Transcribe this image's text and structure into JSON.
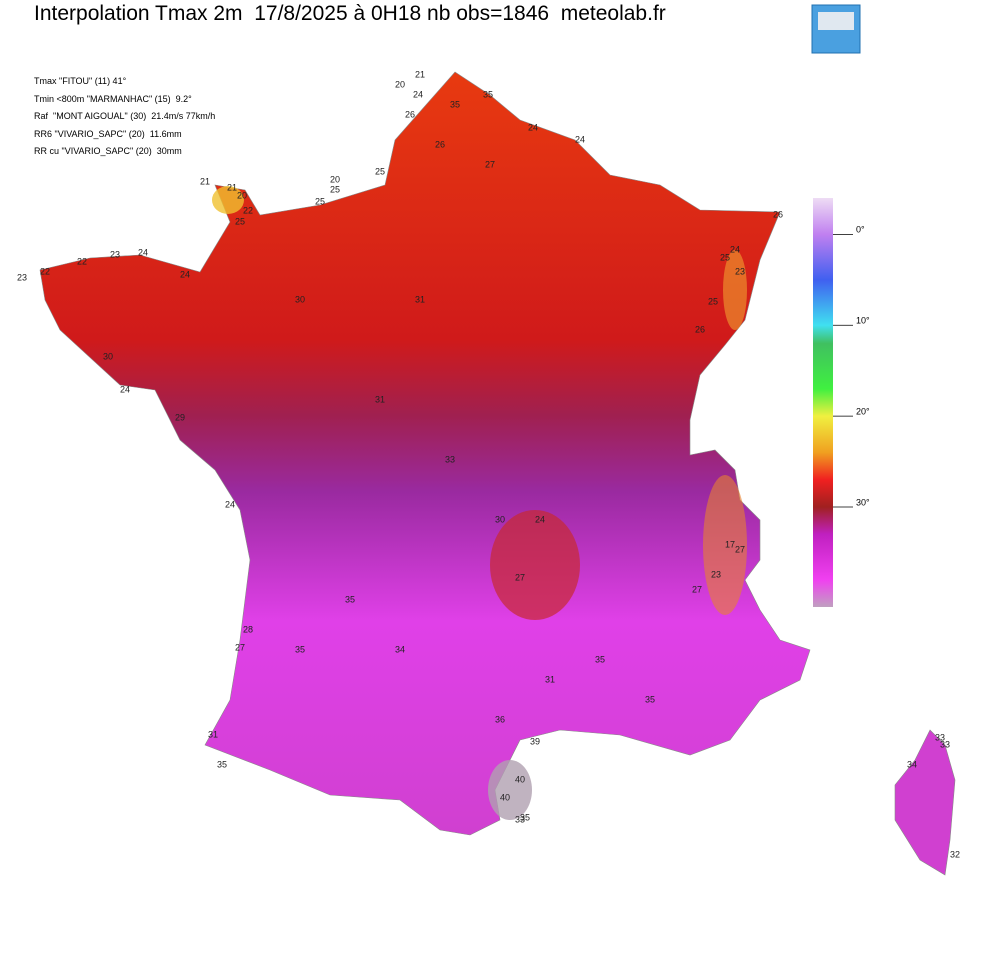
{
  "title": "Interpolation Tmax 2m  17/8/2025 à 0H18 nb obs=1846  meteolab.fr",
  "info": [
    "Tmax \"FITOU\" (11) 41°",
    "Tmin <800m \"MARMANHAC\" (15)  9.2°",
    "Raf  \"MONT AIGOUAL\" (30)  21.4m/s 77km/h",
    "RR6 \"VIVARIO_SAPC\" (20)  11.6mm",
    "RR cu \"VIVARIO_SAPC\" (20)  30mm"
  ],
  "colorbar": {
    "lim": [
      -4,
      41
    ],
    "ticks": [
      {
        "value": 0,
        "label": "0°"
      },
      {
        "value": 10,
        "label": "10°"
      },
      {
        "value": 20,
        "label": "20°"
      },
      {
        "value": 30,
        "label": "30°"
      }
    ],
    "stops": [
      {
        "value": -4,
        "color": "#eedcf4"
      },
      {
        "value": 0,
        "color": "#c080f0"
      },
      {
        "value": 5,
        "color": "#4060f0"
      },
      {
        "value": 10,
        "color": "#40e0f0"
      },
      {
        "value": 12,
        "color": "#40c060"
      },
      {
        "value": 17,
        "color": "#40f040"
      },
      {
        "value": 20,
        "color": "#f0f040"
      },
      {
        "value": 24,
        "color": "#f0a020"
      },
      {
        "value": 27,
        "color": "#f02020"
      },
      {
        "value": 30,
        "color": "#a02020"
      },
      {
        "value": 33,
        "color": "#c020c0"
      },
      {
        "value": 38,
        "color": "#f040f0"
      },
      {
        "value": 41,
        "color": "#c0a0c0"
      }
    ]
  },
  "stations": [
    21,
    20,
    24,
    35,
    35,
    26,
    24,
    24,
    21,
    21,
    20,
    22,
    25,
    20,
    25,
    25,
    25,
    26,
    27,
    26,
    24,
    25,
    23,
    25,
    26,
    23,
    22,
    22,
    23,
    24,
    24,
    30,
    24,
    29,
    24,
    28,
    27,
    31,
    35,
    40,
    40,
    35,
    39,
    33,
    33,
    33,
    34,
    32,
    17,
    27,
    23,
    27,
    27,
    24,
    30,
    31,
    30,
    31,
    33,
    35,
    35,
    34,
    35,
    35,
    31,
    36
  ]
}
